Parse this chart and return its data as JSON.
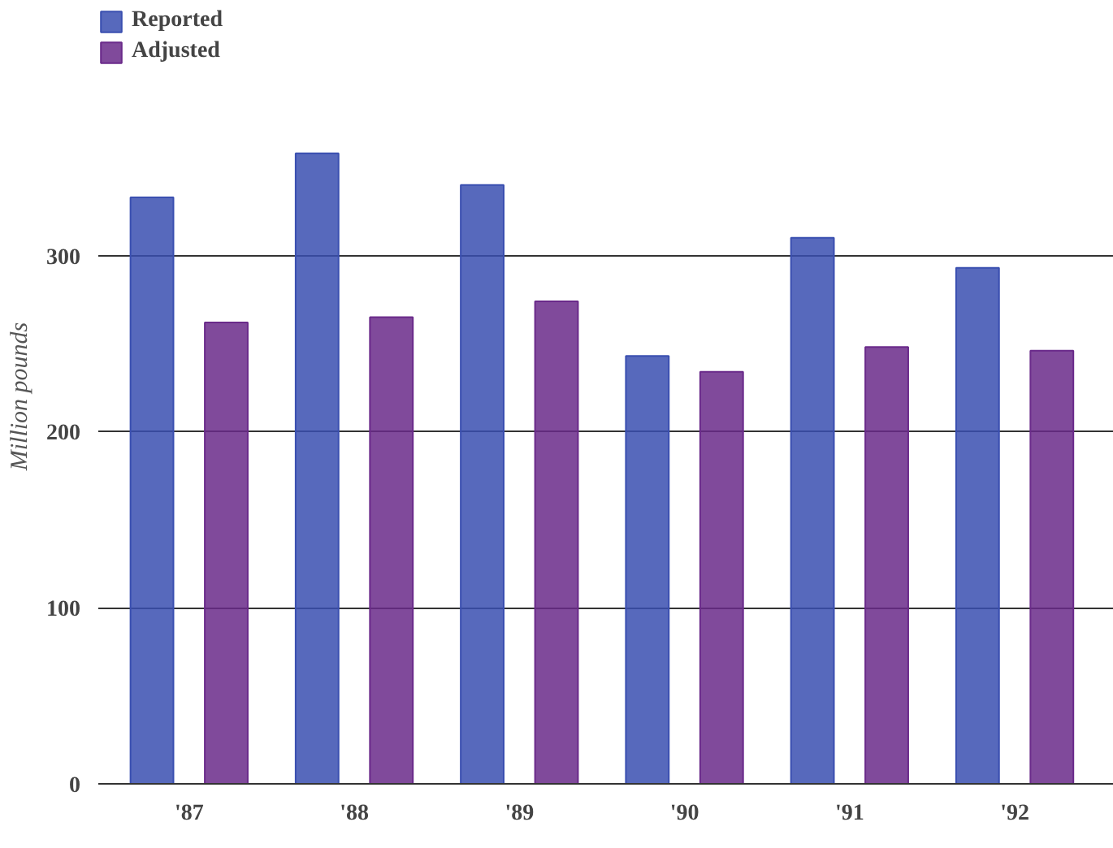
{
  "chart_data": {
    "type": "bar",
    "ylabel": "Million pounds",
    "categories": [
      "'87",
      "'88",
      "'89",
      "'90",
      "'91",
      "'92"
    ],
    "series": [
      {
        "name": "Reported",
        "color": "#3a4fb0",
        "values": [
          333,
          358,
          340,
          243,
          310,
          293
        ]
      },
      {
        "name": "Adjusted",
        "color": "#6a2a8a",
        "values": [
          262,
          265,
          274,
          234,
          248,
          246
        ]
      }
    ],
    "ylim": [
      0,
      440
    ],
    "yticks": [
      0,
      100,
      200,
      300
    ],
    "grid": "y",
    "legend": "top left"
  }
}
